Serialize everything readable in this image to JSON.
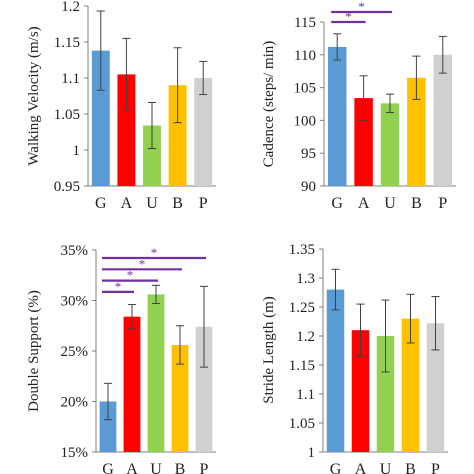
{
  "chart_data": [
    {
      "type": "bar",
      "title": "",
      "xlabel": "",
      "ylabel": "Walking Velocity (m/s)",
      "categories": [
        "G",
        "A",
        "U",
        "B",
        "P"
      ],
      "values": [
        1.138,
        1.105,
        1.034,
        1.09,
        1.1
      ],
      "errors": [
        0.055,
        0.05,
        0.032,
        0.052,
        0.023
      ],
      "colors": [
        "#5b9bd5",
        "#ff0000",
        "#92d050",
        "#ffc000",
        "#d0d0d0"
      ],
      "ylim": [
        0.95,
        1.2
      ],
      "yticks": [
        "0.95",
        "1",
        "1.05",
        "1.1",
        "1.15",
        "1.2"
      ],
      "ytick_values": [
        0.95,
        1.0,
        1.05,
        1.1,
        1.15,
        1.2
      ],
      "significance": []
    },
    {
      "type": "bar",
      "title": "",
      "xlabel": "",
      "ylabel": "Cadence (steps/ min)",
      "categories": [
        "G",
        "A",
        "U",
        "B",
        "P"
      ],
      "values": [
        111.2,
        103.4,
        102.6,
        106.5,
        110.0
      ],
      "errors": [
        2.0,
        3.4,
        1.4,
        3.3,
        2.8
      ],
      "colors": [
        "#5b9bd5",
        "#ff0000",
        "#92d050",
        "#ffc000",
        "#d0d0d0"
      ],
      "ylim": [
        90,
        115
      ],
      "yticks": [
        "90",
        "95",
        "100",
        "105",
        "110",
        "115"
      ],
      "ytick_values": [
        90,
        95,
        100,
        105,
        110,
        115
      ],
      "significance": [
        {
          "from": 0,
          "to": 2,
          "label": "*"
        },
        {
          "from": 0,
          "to": 1,
          "label": "*"
        }
      ]
    },
    {
      "type": "bar",
      "title": "",
      "xlabel": "",
      "ylabel": "Double Support (%)",
      "categories": [
        "G",
        "A",
        "U",
        "B",
        "P"
      ],
      "values": [
        20.0,
        28.4,
        30.6,
        25.6,
        27.4
      ],
      "errors": [
        1.8,
        1.2,
        0.9,
        1.9,
        4.0
      ],
      "colors": [
        "#5b9bd5",
        "#ff0000",
        "#92d050",
        "#ffc000",
        "#d0d0d0"
      ],
      "ylim": [
        15,
        35
      ],
      "yticks": [
        "15%",
        "20%",
        "25%",
        "30%",
        "35%"
      ],
      "ytick_values": [
        15,
        20,
        25,
        30,
        35
      ],
      "significance": [
        {
          "from": 0,
          "to": 4,
          "label": "*"
        },
        {
          "from": 0,
          "to": 3,
          "label": "*"
        },
        {
          "from": 0,
          "to": 2,
          "label": "*"
        },
        {
          "from": 0,
          "to": 1,
          "label": "*"
        }
      ]
    },
    {
      "type": "bar",
      "title": "",
      "xlabel": "",
      "ylabel": "Stride Length (m)",
      "categories": [
        "G",
        "A",
        "U",
        "B",
        "P"
      ],
      "values": [
        1.28,
        1.21,
        1.2,
        1.23,
        1.222
      ],
      "errors": [
        0.035,
        0.045,
        0.062,
        0.042,
        0.046
      ],
      "colors": [
        "#5b9bd5",
        "#ff0000",
        "#92d050",
        "#ffc000",
        "#d0d0d0"
      ],
      "ylim": [
        1.0,
        1.35
      ],
      "yticks": [
        "1",
        "1.05",
        "1.1",
        "1.15",
        "1.2",
        "1.25",
        "1.3",
        "1.35"
      ],
      "ytick_values": [
        1.0,
        1.05,
        1.1,
        1.15,
        1.2,
        1.25,
        1.3,
        1.35
      ],
      "significance": []
    }
  ],
  "colors": {
    "significance_line": "#7030a0",
    "axis": "#7f7f7f",
    "error_bar": "#404040"
  }
}
